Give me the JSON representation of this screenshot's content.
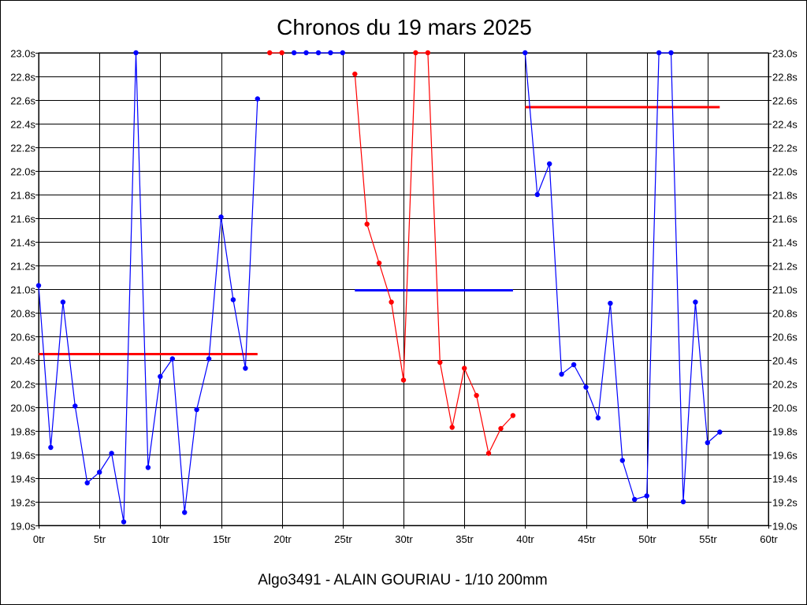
{
  "chart_data": {
    "type": "line",
    "title": "Chronos du 19 mars 2025",
    "footer": "Algo3491 - ALAIN GOURIAU - 1/10 200mm",
    "xlabel": "",
    "ylabel": "",
    "xlim": [
      0,
      60
    ],
    "ylim": [
      19.0,
      23.0
    ],
    "grid": true,
    "x_ticks": [
      "0tr",
      "5tr",
      "10tr",
      "15tr",
      "20tr",
      "25tr",
      "30tr",
      "35tr",
      "40tr",
      "45tr",
      "50tr",
      "55tr",
      "60tr"
    ],
    "y_ticks": [
      "19.0s",
      "19.2s",
      "19.4s",
      "19.6s",
      "19.8s",
      "20.0s",
      "20.2s",
      "20.4s",
      "20.6s",
      "20.8s",
      "21.0s",
      "21.2s",
      "21.4s",
      "21.6s",
      "21.8s",
      "22.0s",
      "22.2s",
      "22.4s",
      "22.6s",
      "22.8s",
      "23.0s"
    ],
    "series": [
      {
        "color": "#0000ff",
        "points": [
          [
            0,
            21.03
          ],
          [
            1,
            19.66
          ],
          [
            2,
            20.89
          ],
          [
            3,
            20.01
          ],
          [
            4,
            19.36
          ],
          [
            5,
            19.45
          ],
          [
            6,
            19.61
          ],
          [
            7,
            19.03
          ],
          [
            8,
            23.0
          ],
          [
            9,
            19.49
          ],
          [
            10,
            20.26
          ],
          [
            11,
            20.41
          ],
          [
            12,
            19.11
          ],
          [
            13,
            19.98
          ],
          [
            14,
            20.41
          ],
          [
            15,
            21.61
          ],
          [
            16,
            20.91
          ],
          [
            17,
            20.33
          ],
          [
            18,
            22.61
          ]
        ]
      },
      {
        "color": "#ff0000",
        "points": [
          [
            19,
            23.0
          ],
          [
            20,
            23.0
          ]
        ]
      },
      {
        "color": "#0000ff",
        "points": [
          [
            21,
            23.0
          ],
          [
            22,
            23.0
          ],
          [
            23,
            23.0
          ],
          [
            24,
            23.0
          ],
          [
            25,
            23.0
          ]
        ]
      },
      {
        "color": "#ff0000",
        "points": [
          [
            26,
            22.82
          ],
          [
            27,
            21.55
          ],
          [
            28,
            21.22
          ],
          [
            29,
            20.89
          ],
          [
            30,
            20.23
          ],
          [
            31,
            23.0
          ],
          [
            32,
            23.0
          ],
          [
            33,
            20.38
          ],
          [
            34,
            19.83
          ],
          [
            35,
            20.33
          ],
          [
            36,
            20.1
          ],
          [
            37,
            19.61
          ],
          [
            38,
            19.82
          ],
          [
            39,
            19.93
          ]
        ]
      },
      {
        "color": "#0000ff",
        "points": [
          [
            40,
            23.0
          ],
          [
            41,
            21.8
          ],
          [
            42,
            22.06
          ],
          [
            43,
            20.28
          ],
          [
            44,
            20.36
          ],
          [
            45,
            20.17
          ],
          [
            46,
            19.91
          ],
          [
            47,
            20.88
          ],
          [
            48,
            19.55
          ],
          [
            49,
            19.22
          ],
          [
            50,
            19.25
          ],
          [
            51,
            23.0
          ],
          [
            52,
            23.0
          ],
          [
            53,
            19.2
          ],
          [
            54,
            20.89
          ],
          [
            55,
            19.7
          ],
          [
            56,
            19.79
          ]
        ]
      }
    ],
    "averages": [
      {
        "color": "#ff0000",
        "x": [
          0,
          18
        ],
        "y": 20.45
      },
      {
        "color": "#0000ff",
        "x": [
          26,
          39
        ],
        "y": 20.99
      },
      {
        "color": "#ff0000",
        "x": [
          40,
          56
        ],
        "y": 22.54
      }
    ]
  }
}
